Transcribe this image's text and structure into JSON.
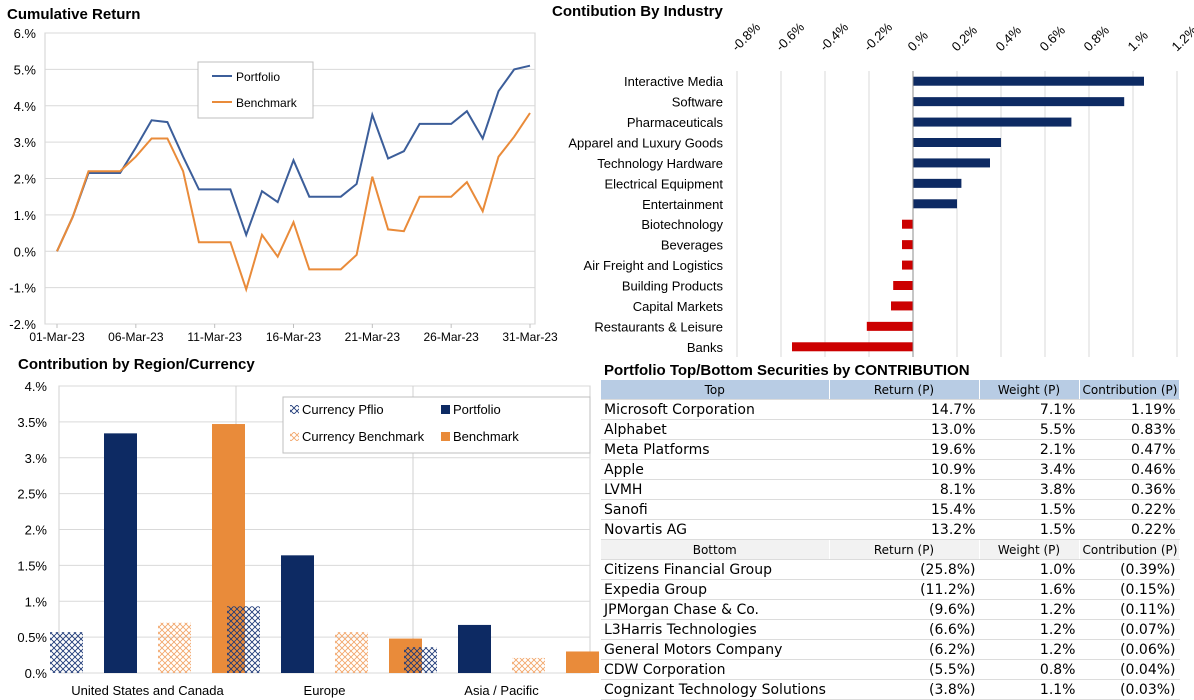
{
  "titles": {
    "cumulative": "Cumulative Return",
    "industry": "Contibution By Industry",
    "region": "Contribution by Region/Currency",
    "table": "Portfolio Top/Bottom Securities by CONTRIBUTION"
  },
  "chart_data": [
    {
      "type": "line",
      "title": "Cumulative Return",
      "x": [
        "01-Mar-23",
        "02-Mar-23",
        "03-Mar-23",
        "04-Mar-23",
        "05-Mar-23",
        "06-Mar-23",
        "07-Mar-23",
        "08-Mar-23",
        "09-Mar-23",
        "10-Mar-23",
        "11-Mar-23",
        "12-Mar-23",
        "13-Mar-23",
        "14-Mar-23",
        "15-Mar-23",
        "16-Mar-23",
        "17-Mar-23",
        "18-Mar-23",
        "19-Mar-23",
        "20-Mar-23",
        "21-Mar-23",
        "22-Mar-23",
        "23-Mar-23",
        "24-Mar-23",
        "25-Mar-23",
        "26-Mar-23",
        "27-Mar-23",
        "28-Mar-23",
        "29-Mar-23",
        "30-Mar-23",
        "31-Mar-23"
      ],
      "xticks": [
        "01-Mar-23",
        "06-Mar-23",
        "11-Mar-23",
        "16-Mar-23",
        "21-Mar-23",
        "26-Mar-23",
        "31-Mar-23"
      ],
      "yticks": [
        "6.%",
        "5.%",
        "4.%",
        "3.%",
        "2.%",
        "1.%",
        "0.%",
        "-1.%",
        "-2.%"
      ],
      "ylim": [
        -2,
        6
      ],
      "series": [
        {
          "name": "Portfolio",
          "color": "#3c5e9a",
          "values": [
            0.0,
            0.95,
            2.15,
            2.15,
            2.15,
            2.85,
            3.6,
            3.55,
            2.6,
            1.7,
            1.7,
            1.7,
            0.45,
            1.65,
            1.35,
            2.5,
            1.5,
            1.5,
            1.5,
            1.85,
            3.75,
            2.55,
            2.75,
            3.5,
            3.5,
            3.5,
            3.85,
            3.1,
            4.4,
            5.0,
            5.1
          ]
        },
        {
          "name": "Benchmark",
          "color": "#e98b3a",
          "values": [
            0.0,
            0.95,
            2.2,
            2.2,
            2.2,
            2.6,
            3.1,
            3.1,
            2.2,
            0.25,
            0.25,
            0.25,
            -1.05,
            0.45,
            -0.15,
            0.8,
            -0.5,
            -0.5,
            -0.5,
            -0.1,
            2.05,
            0.6,
            0.55,
            1.5,
            1.5,
            1.5,
            1.9,
            1.1,
            2.6,
            3.15,
            3.8
          ]
        }
      ],
      "legend": "top-center"
    },
    {
      "type": "bar",
      "orientation": "horizontal",
      "title": "Contibution By Industry",
      "categories": [
        "Interactive Media",
        "Software",
        "Pharmaceuticals",
        "Apparel and Luxury Goods",
        "Technology Hardware",
        "Electrical Equipment",
        "Entertainment",
        "Biotechnology",
        "Beverages",
        "Air Freight and Logistics",
        "Building Products",
        "Capital Markets",
        "Restaurants & Leisure",
        "Banks"
      ],
      "values": [
        1.05,
        0.96,
        0.72,
        0.4,
        0.35,
        0.22,
        0.2,
        -0.05,
        -0.05,
        -0.05,
        -0.09,
        -0.1,
        -0.21,
        -0.55
      ],
      "xticks": [
        "-0.8%",
        "-0.6%",
        "-0.4%",
        "-0.2%",
        "0.%",
        "0.2%",
        "0.4%",
        "0.6%",
        "0.8%",
        "1.%",
        "1.2%"
      ],
      "xlim": [
        -0.8,
        1.2
      ],
      "positive_color": "#0d2a63",
      "negative_color": "#cc0000"
    },
    {
      "type": "bar",
      "title": "Contribution by Region/Currency",
      "categories": [
        "United States and Canada",
        "Europe",
        "Asia / Pacific"
      ],
      "yticks": [
        "4.%",
        "3.5%",
        "3.%",
        "2.5%",
        "2.%",
        "1.5%",
        "1.%",
        "0.5%",
        "0.%"
      ],
      "ylim": [
        0,
        4
      ],
      "series": [
        {
          "name": "Currency Pflio",
          "color": "#1f3a78",
          "pattern": "hatch",
          "values": [
            0.57,
            0.93,
            0.36
          ]
        },
        {
          "name": "Portfolio",
          "color": "#0d2a63",
          "pattern": "solid",
          "values": [
            3.34,
            1.64,
            0.67
          ]
        },
        {
          "name": "Currency Benchmark",
          "color": "#f2a66b",
          "pattern": "hatch",
          "values": [
            0.7,
            0.57,
            0.21
          ]
        },
        {
          "name": "Benchmark",
          "color": "#e98b3a",
          "pattern": "solid",
          "values": [
            3.47,
            0.48,
            0.3
          ]
        }
      ],
      "legend": "top-right"
    }
  ],
  "table": {
    "top_header": [
      "Top",
      "Return (P)",
      "Weight (P)",
      "Contribution (P)"
    ],
    "top_rows": [
      [
        "Microsoft Corporation",
        "14.7%",
        "7.1%",
        "1.19%"
      ],
      [
        "Alphabet",
        "13.0%",
        "5.5%",
        "0.83%"
      ],
      [
        "Meta Platforms",
        "19.6%",
        "2.1%",
        "0.47%"
      ],
      [
        "Apple",
        "10.9%",
        "3.4%",
        "0.46%"
      ],
      [
        "LVMH",
        "8.1%",
        "3.8%",
        "0.36%"
      ],
      [
        "Sanofi",
        "15.4%",
        "1.5%",
        "0.22%"
      ],
      [
        "Novartis AG",
        "13.2%",
        "1.5%",
        "0.22%"
      ]
    ],
    "bottom_header": [
      "Bottom",
      "Return (P)",
      "Weight (P)",
      "Contribution (P)"
    ],
    "bottom_rows": [
      [
        "Citizens Financial Group",
        "(25.8%)",
        "1.0%",
        "(0.39%)"
      ],
      [
        "Expedia Group",
        "(11.2%)",
        "1.6%",
        "(0.15%)"
      ],
      [
        "JPMorgan Chase & Co.",
        "(9.6%)",
        "1.2%",
        "(0.11%)"
      ],
      [
        "L3Harris Technologies",
        "(6.6%)",
        "1.2%",
        "(0.07%)"
      ],
      [
        "General Motors Company",
        "(6.2%)",
        "1.2%",
        "(0.06%)"
      ],
      [
        "CDW Corporation",
        "(5.5%)",
        "0.8%",
        "(0.04%)"
      ],
      [
        "Cognizant Technology Solutions",
        "(3.8%)",
        "1.1%",
        "(0.03%)"
      ]
    ]
  }
}
